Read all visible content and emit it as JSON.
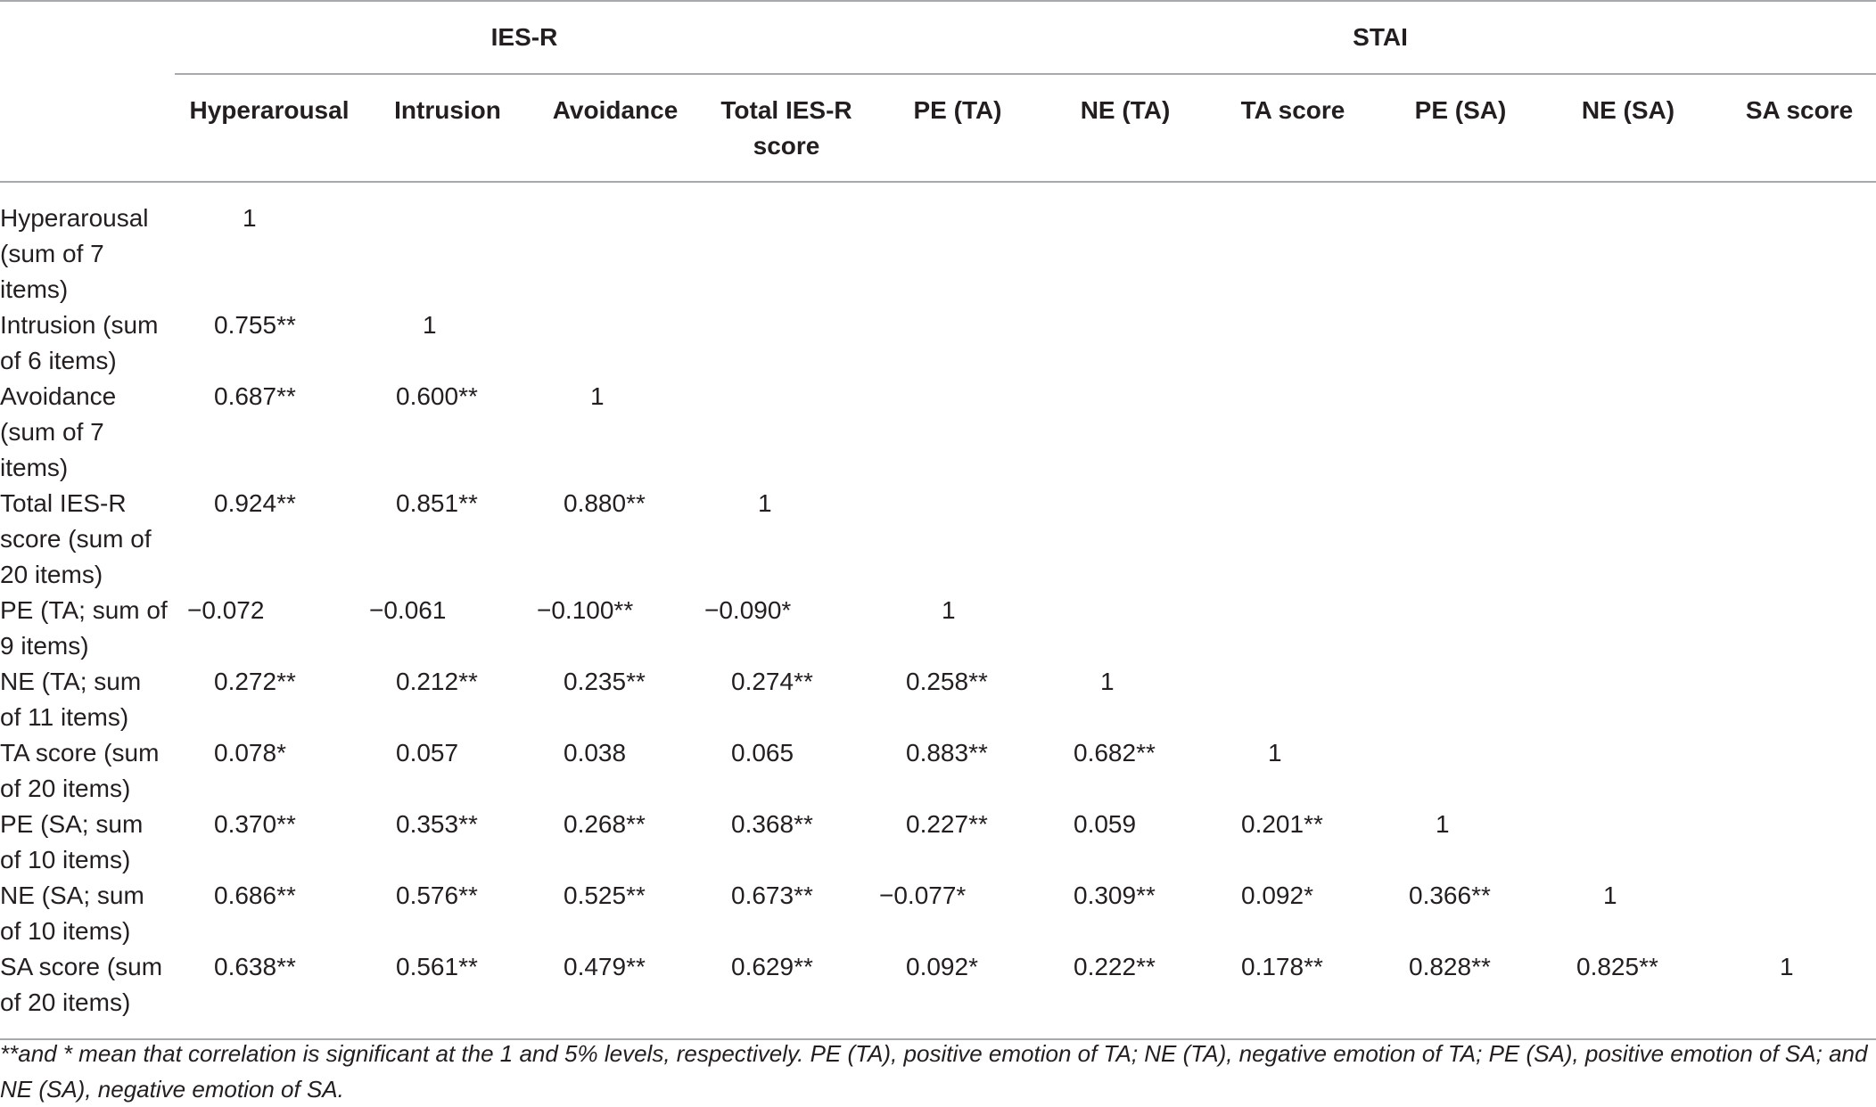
{
  "table": {
    "groups": [
      {
        "label": "",
        "span": 1
      },
      {
        "label": "IES-R",
        "span": 4
      },
      {
        "label": "STAI",
        "span": 6
      }
    ],
    "columns": [
      "",
      "Hyperarousal",
      "Intrusion",
      "Avoidance",
      "Total IES-R score",
      "PE (TA)",
      "NE (TA)",
      "TA score",
      "PE (SA)",
      "NE (SA)",
      "SA score"
    ],
    "rows": [
      {
        "label": "Hyperarousal (sum of 7 items)",
        "values": [
          "1",
          "",
          "",
          "",
          "",
          "",
          "",
          "",
          "",
          ""
        ]
      },
      {
        "label": "Intrusion (sum of 6 items)",
        "values": [
          "0.755**",
          "1",
          "",
          "",
          "",
          "",
          "",
          "",
          "",
          ""
        ]
      },
      {
        "label": "Avoidance (sum of 7 items)",
        "values": [
          "0.687**",
          "0.600**",
          "1",
          "",
          "",
          "",
          "",
          "",
          "",
          ""
        ]
      },
      {
        "label": "Total IES-R score (sum of 20 items)",
        "values": [
          "0.924**",
          "0.851**",
          "0.880**",
          "1",
          "",
          "",
          "",
          "",
          "",
          ""
        ]
      },
      {
        "label": "PE (TA; sum of 9 items)",
        "values": [
          "−0.072",
          "−0.061",
          "−0.100**",
          "−0.090*",
          "1",
          "",
          "",
          "",
          "",
          ""
        ]
      },
      {
        "label": "NE (TA; sum of 11 items)",
        "values": [
          "0.272**",
          "0.212**",
          "0.235**",
          "0.274**",
          "0.258**",
          "1",
          "",
          "",
          "",
          ""
        ]
      },
      {
        "label": "TA score (sum of 20 items)",
        "values": [
          "0.078*",
          "0.057",
          "0.038",
          "0.065",
          "0.883**",
          "0.682**",
          "1",
          "",
          "",
          ""
        ]
      },
      {
        "label": "PE (SA; sum of 10 items)",
        "values": [
          "0.370**",
          "0.353**",
          "0.268**",
          "0.368**",
          "0.227**",
          "0.059",
          "0.201**",
          "1",
          "",
          ""
        ]
      },
      {
        "label": "NE (SA; sum of 10 items)",
        "values": [
          "0.686**",
          "0.576**",
          "0.525**",
          "0.673**",
          "−0.077*",
          "0.309**",
          "0.092*",
          "0.366**",
          "1",
          ""
        ]
      },
      {
        "label": "SA score (sum of 20 items)",
        "values": [
          "0.638**",
          "0.561**",
          "0.479**",
          "0.629**",
          "0.092*",
          "0.222**",
          "0.178**",
          "0.828**",
          "0.825**",
          "1"
        ]
      }
    ]
  },
  "footnote": "**and * mean that correlation is significant at the 1 and 5% levels, respectively. PE (TA), positive emotion of TA; NE (TA), negative emotion of TA; PE (SA), positive emotion of SA; and NE (SA), negative emotion of SA."
}
